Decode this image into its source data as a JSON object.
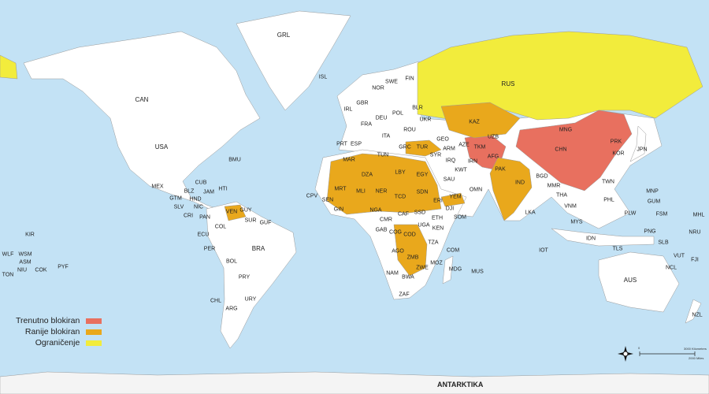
{
  "colors": {
    "ocean": "#c3e2f5",
    "land": "#ffffff",
    "currently_blocked": "#e8705f",
    "previously_blocked": "#e9a81c",
    "restricted": "#f2ec3c"
  },
  "legend": [
    {
      "label": "Trenutno blokiran",
      "color": "#e8705f"
    },
    {
      "label": "Ranije blokiran",
      "color": "#e9a81c"
    },
    {
      "label": "Ograničenje",
      "color": "#f2ec3c"
    }
  ],
  "antarctica_label": "ANTARKTIKA",
  "scale": {
    "km": "3000 Kilometers",
    "mi": "2000 Miles",
    "zero": "0"
  },
  "compass_icon": "north-arrow-icon",
  "labels": {
    "GRL": "GRL",
    "CAN": "CAN",
    "USA": "USA",
    "MEX": "MEX",
    "ISL": "ISL",
    "BMU": "BMU",
    "CUB": "CUB",
    "JAM": "JAM",
    "HTI": "HTI",
    "BLZ": "BLZ",
    "GTM": "GTM",
    "HND": "HND",
    "SLV": "SLV",
    "NIC": "NIC",
    "CRI": "CRI",
    "PAN": "PAN",
    "COL": "COL",
    "VEN": "VEN",
    "GUY": "GUY",
    "SUR": "SUR",
    "GUF": "GUF",
    "ECU": "ECU",
    "PER": "PER",
    "BRA": "BRA",
    "BOL": "BOL",
    "PRY": "PRY",
    "CHL": "CHL",
    "ARG": "ARG",
    "URY": "URY",
    "CPV": "CPV",
    "NOR": "NOR",
    "SWE": "SWE",
    "FIN": "FIN",
    "GBR": "GBR",
    "IRL": "IRL",
    "FRA": "FRA",
    "ESP": "ESP",
    "PRT": "PRT",
    "DEU": "DEU",
    "POL": "POL",
    "UKR": "UKR",
    "BLR": "BLR",
    "ITA": "ITA",
    "ROU": "ROU",
    "TUR": "TUR",
    "GRC": "GRC",
    "RUS": "RUS",
    "KAZ": "KAZ",
    "MNG": "MNG",
    "CHN": "CHN",
    "PRK": "PRK",
    "KOR": "KOR",
    "JPN": "JPN",
    "TWN": "TWN",
    "IRN": "IRN",
    "IRQ": "IRQ",
    "SYR": "SYR",
    "SAU": "SAU",
    "YEM": "YEM",
    "OMN": "OMN",
    "AFG": "AFG",
    "PAK": "PAK",
    "IND": "IND",
    "TKM": "TKM",
    "UZB": "UZB",
    "BGD": "BGD",
    "MMR": "MMR",
    "THA": "THA",
    "VNM": "VNM",
    "PHL": "PHL",
    "MYS": "MYS",
    "IDN": "IDN",
    "LKA": "LKA",
    "KWT": "KWT",
    "GEO": "GEO",
    "ARM": "ARM",
    "AZE": "AZE",
    "MAR": "MAR",
    "DZA": "DZA",
    "TUN": "TUN",
    "LBY": "LBY",
    "EGY": "EGY",
    "MRT": "MRT",
    "MLI": "MLI",
    "NER": "NER",
    "TCD": "TCD",
    "SDN": "SDN",
    "SSD": "SSD",
    "ETH": "ETH",
    "SOM": "SOM",
    "KEN": "KEN",
    "UGA": "UGA",
    "NGA": "NGA",
    "CMR": "CMR",
    "CAF": "CAF",
    "COD": "COD",
    "COG": "COG",
    "GAB": "GAB",
    "AGO": "AGO",
    "ZMB": "ZMB",
    "ZWE": "ZWE",
    "NAM": "NAM",
    "BWA": "BWA",
    "ZAF": "ZAF",
    "MOZ": "MOZ",
    "MDG": "MDG",
    "TZA": "TZA",
    "COM": "COM",
    "GIN": "GIN",
    "SEN": "SEN",
    "ERI": "ERI",
    "DJI": "DJI",
    "AUS": "AUS",
    "NZL": "NZL",
    "PNG": "PNG",
    "SLB": "SLB",
    "NCL": "NCL",
    "FJI": "FJI",
    "VUT": "VUT",
    "MNP": "MNP",
    "GUM": "GUM",
    "PLW": "PLW",
    "FSM": "FSM",
    "MHL": "MHL",
    "NRU": "NRU",
    "KIR": "KIR",
    "WLF": "WLF",
    "WSM": "WSM",
    "ASM": "ASM",
    "TON": "TON",
    "NIU": "NIU",
    "COK": "COK",
    "PYF": "PYF",
    "TLS": "TLS",
    "IOT": "IOT",
    "MUS": "MUS"
  }
}
